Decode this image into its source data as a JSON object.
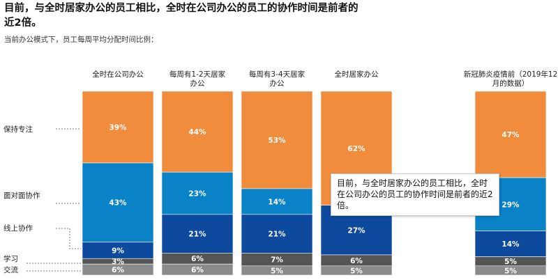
{
  "title": "目前，与全时居家办公的员工相比，全时在公司办公的员工的协作时间是前者的近2倍。",
  "subtitle": "当前办公模式下，员工每周平均分配时间比例：",
  "callout": "目前，与全时居家办公的员工相比，全时在公司办公的员工的协作时间是前者的近2倍。",
  "colors": {
    "保持专注": "#f08c3c",
    "面对面协作": "#0a82c8",
    "线上协作": "#0d4a9e",
    "学习": "#555555",
    "交流": "#8a8a8a"
  },
  "chart_data": {
    "type": "bar",
    "stacked": true,
    "categories": [
      "全时在公司办公",
      "每周有1-2天居家办公",
      "每周有3-4天居家办公",
      "全时居家办公",
      "新冠肺炎疫情前（2019年12月的数据）"
    ],
    "series": [
      {
        "name": "保持专注",
        "values": [
          39,
          44,
          53,
          62,
          47
        ]
      },
      {
        "name": "面对面协作",
        "values": [
          43,
          23,
          14,
          null,
          29
        ]
      },
      {
        "name": "线上协作",
        "values": [
          9,
          21,
          21,
          27,
          14
        ]
      },
      {
        "name": "学习",
        "values": [
          3,
          6,
          7,
          6,
          5
        ]
      },
      {
        "name": "交流",
        "values": [
          6,
          6,
          5,
          5,
          5
        ]
      }
    ],
    "value_suffix": "%",
    "legend": [
      "保持专注",
      "面对面协作",
      "线上协作",
      "学习",
      "交流"
    ],
    "legend_position": "left"
  }
}
